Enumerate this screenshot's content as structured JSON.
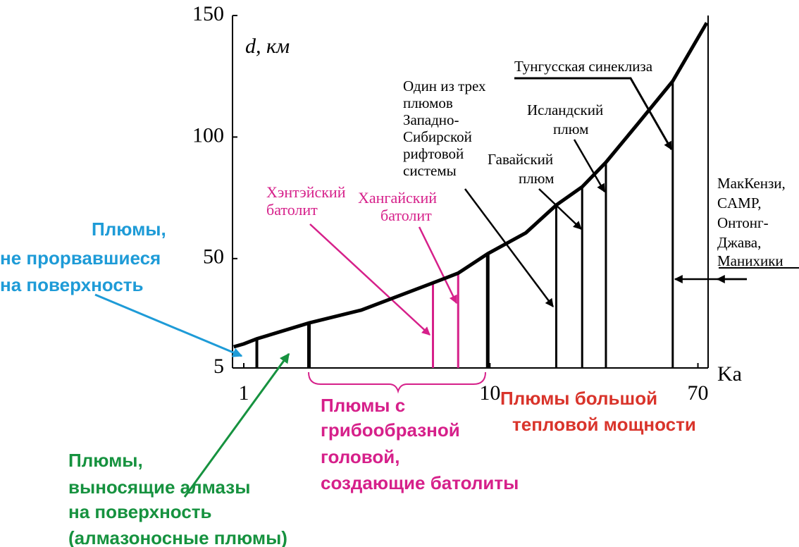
{
  "chart_data": {
    "type": "line",
    "xlabel": "Ka",
    "ylabel": "d, км",
    "xscale": "log",
    "xlim": [
      0.9,
      77
    ],
    "ylim": [
      5,
      150
    ],
    "xticks": [
      1,
      10,
      70
    ],
    "yticks": [
      5,
      50,
      100,
      150
    ],
    "series": [
      {
        "color": "#000000",
        "x": [
          0.91,
          1,
          1.13,
          1.84,
          3,
          5.87,
          7.43,
          9.8,
          14,
          18.6,
          23.7,
          29.6,
          40,
          55.3,
          76
        ],
        "values": [
          13.7,
          14.9,
          17,
          23.5,
          28.8,
          40,
          44,
          52,
          60.6,
          72,
          79.5,
          89.6,
          105.6,
          123,
          147
        ]
      }
    ],
    "bars": {
      "x": [
        1.13,
        1.84,
        5.87,
        7.43,
        9.8,
        18.6,
        23.7,
        29.6,
        55.3
      ],
      "values": [
        17,
        23.5,
        40,
        44,
        52,
        72,
        79.5,
        89.6,
        123
      ],
      "colors": [
        "#000000",
        "#000000",
        "#d6208a",
        "#d6208a",
        "#000000",
        "#000000",
        "#000000",
        "#000000",
        "#000000"
      ]
    },
    "annotations": [
      {
        "lines": [
          "Плюмы,",
          "не прорвавшиеся",
          "на поверхность"
        ],
        "color": "#1e9bd7"
      },
      {
        "lines": [
          "Плюмы,",
          "выносящие алмазы",
          " на поверхность",
          "(алмазоносные плюмы)"
        ],
        "color": "#16923f"
      },
      {
        "lines": [
          "Плюмы с",
          "грибообразной",
          "головой,",
          "создающие батолиты"
        ],
        "color": "#d6208a"
      },
      {
        "lines": [
          "Плюмы большой",
          "тепловой мощности"
        ],
        "color": "#d9342b"
      },
      {
        "lines": [
          "Хэнтэйский",
          "батолит"
        ],
        "color": "#d6208a"
      },
      {
        "lines": [
          "Хангайский",
          "батолит"
        ],
        "color": "#d6208a"
      },
      {
        "lines": [
          "Один из трех",
          "плюмов",
          "Западно-",
          "Сибирской",
          "рифтовой",
          "системы"
        ],
        "color": "#000000"
      },
      {
        "lines": [
          "Гавайский",
          "плюм"
        ],
        "color": "#000000"
      },
      {
        "lines": [
          "Исландский",
          "плюм"
        ],
        "color": "#000000"
      },
      {
        "lines": [
          "Тунгусская синеклиза"
        ],
        "color": "#000000"
      },
      {
        "lines": [
          "МакКензи,",
          "CAMP,",
          "Онтонг-",
          "Джава,",
          "Манихики"
        ],
        "color": "#000000"
      }
    ]
  }
}
